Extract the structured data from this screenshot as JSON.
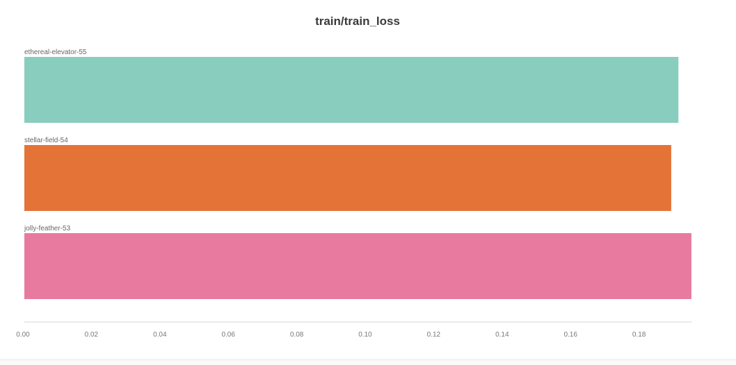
{
  "chart_data": {
    "type": "bar",
    "orientation": "horizontal",
    "title": "train/train_loss",
    "xlabel": "",
    "ylabel": "",
    "xlim": [
      0,
      0.195
    ],
    "x_ticks": [
      "0.00",
      "0.02",
      "0.04",
      "0.06",
      "0.08",
      "0.10",
      "0.12",
      "0.14",
      "0.16",
      "0.18"
    ],
    "grid": false,
    "bars": [
      {
        "label": "ethereal-elevator-55",
        "value": 0.1911,
        "color": "#88cdbe"
      },
      {
        "label": "stellar-field-54",
        "value": 0.189,
        "color": "#e47337"
      },
      {
        "label": "jolly-feather-53",
        "value": 0.1949,
        "color": "#e87aa0"
      }
    ]
  }
}
